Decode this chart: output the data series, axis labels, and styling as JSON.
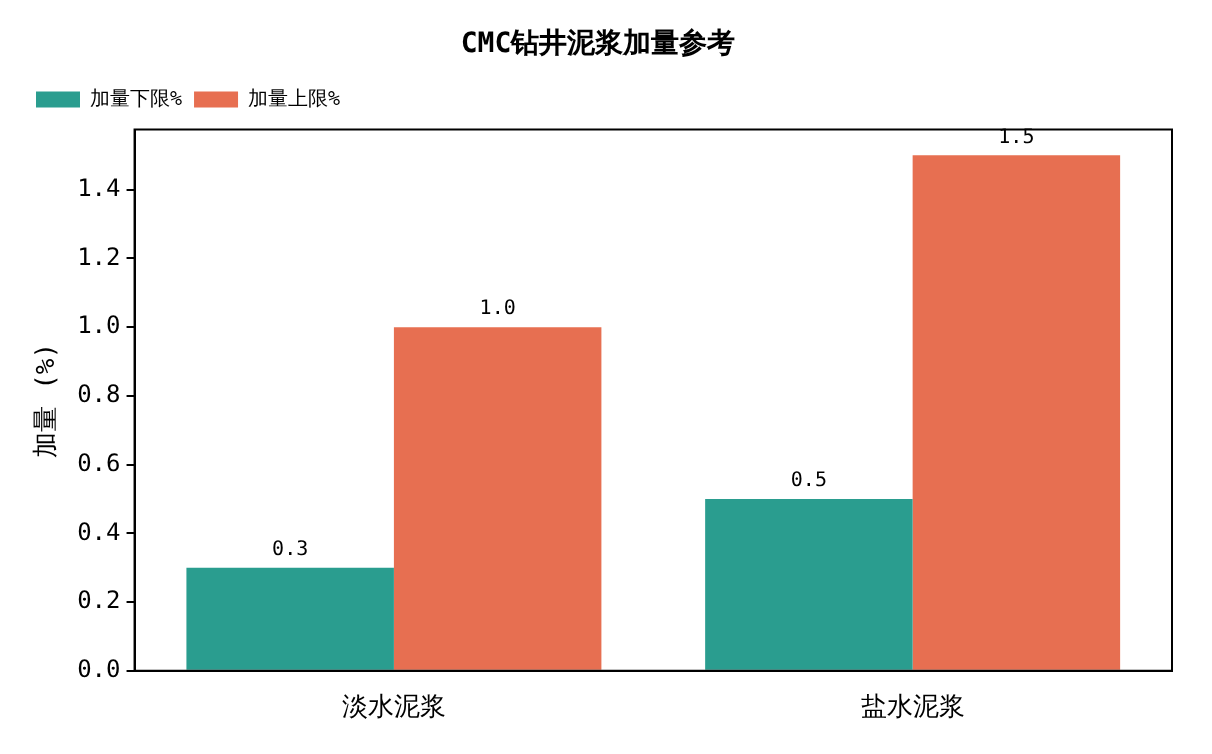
{
  "chart_data": {
    "type": "bar",
    "title": "CMC钻井泥浆加量参考",
    "ylabel": "加量 (%)",
    "categories": [
      "淡水泥浆",
      "盐水泥浆"
    ],
    "series": [
      {
        "name": "加量下限%",
        "color": "#2a9d8f",
        "values": [
          0.3,
          0.5
        ],
        "value_labels": [
          "0.3",
          "0.5"
        ]
      },
      {
        "name": "加量上限%",
        "color": "#e76f51",
        "values": [
          1.0,
          1.5
        ],
        "value_labels": [
          "1.0",
          "1.5"
        ]
      }
    ],
    "ylim": [
      0,
      1.575
    ],
    "yticks": [
      {
        "value": 0,
        "label": "0.0"
      },
      {
        "value": 0.2,
        "label": "0.2"
      },
      {
        "value": 0.4,
        "label": "0.4"
      },
      {
        "value": 0.6,
        "label": "0.6"
      },
      {
        "value": 0.8,
        "label": "0.8"
      },
      {
        "value": 1.0,
        "label": "1.0"
      },
      {
        "value": 1.2,
        "label": "1.2"
      },
      {
        "value": 1.4,
        "label": "1.4"
      }
    ],
    "grid": false,
    "legend": "top left"
  }
}
